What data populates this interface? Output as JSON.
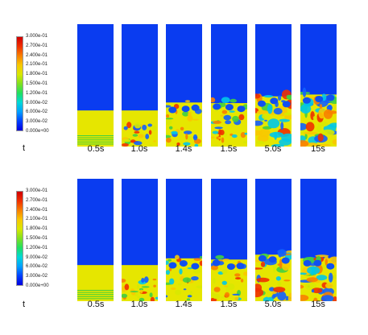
{
  "colors": {
    "gas": "#0a3cf0",
    "bed": "#e6e600",
    "scale": [
      "#0000e0",
      "#0040ff",
      "#00a0ff",
      "#00d8d8",
      "#20e060",
      "#80e020",
      "#d8e800",
      "#f8c800",
      "#f88000",
      "#f03000",
      "#d00000"
    ]
  },
  "rows": [
    {
      "legend_ticks": [
        "3.000e-01",
        "2.700e-01",
        "2.400e-01",
        "2.100e-01",
        "1.800e-01",
        "1.500e-01",
        "1.200e-01",
        "9.000e-02",
        "6.000e-02",
        "3.000e-02",
        "0.000e+00"
      ],
      "t_label": "t",
      "times": [
        "0.5s",
        "1.0s",
        "1.4s",
        "1.5s",
        "5.0s",
        "15s"
      ],
      "bed_level": [
        0.295,
        0.295,
        0.36,
        0.355,
        0.41,
        0.425
      ]
    },
    {
      "legend_ticks": [
        "3.000e-01",
        "2.700e-01",
        "2.400e-01",
        "2.100e-01",
        "1.800e-01",
        "1.500e-01",
        "1.200e-01",
        "9.000e-02",
        "6.000e-02",
        "3.000e-02",
        "0.000e+00"
      ],
      "t_label": "t",
      "times": [
        "0.5s",
        "1.0s",
        "1.4s",
        "1.5s",
        "5.0s",
        "15s"
      ],
      "bed_level": [
        0.295,
        0.295,
        0.35,
        0.34,
        0.38,
        0.35
      ]
    }
  ]
}
